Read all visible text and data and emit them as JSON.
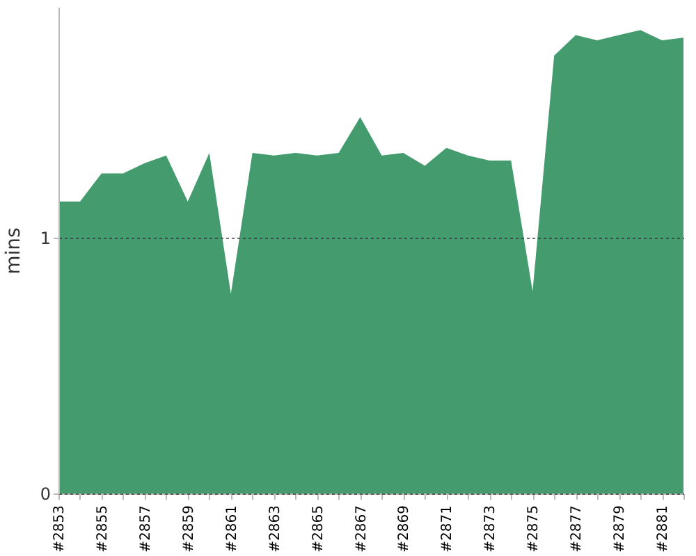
{
  "chart_data": {
    "type": "area",
    "ylabel": "mins",
    "categories": [
      "#2853",
      null,
      "#2855",
      null,
      "#2857",
      null,
      "#2859",
      null,
      "#2861",
      null,
      "#2863",
      null,
      "#2865",
      null,
      "#2867",
      null,
      "#2869",
      null,
      "#2871",
      null,
      "#2873",
      null,
      "#2875",
      null,
      "#2877",
      null,
      "#2879",
      null,
      "#2881",
      null
    ],
    "values": [
      1.14,
      1.14,
      1.25,
      1.25,
      1.29,
      1.32,
      1.14,
      1.33,
      0.78,
      1.33,
      1.32,
      1.33,
      1.32,
      1.33,
      1.47,
      1.32,
      1.33,
      1.28,
      1.35,
      1.32,
      1.3,
      1.3,
      0.79,
      1.71,
      1.79,
      1.77,
      1.79,
      1.81,
      1.77,
      1.78
    ],
    "color": "#449c6e",
    "ylim": [
      0,
      1.9
    ],
    "yticks": [
      0,
      1
    ],
    "grid": "y"
  }
}
